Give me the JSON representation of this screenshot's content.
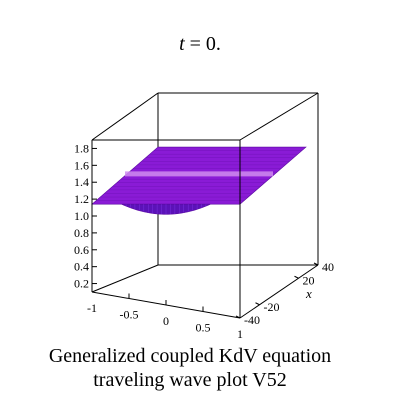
{
  "chart_data": {
    "type": "surface3d",
    "title_var": "t",
    "title_eq": " = 0.",
    "caption": [
      "Generalized coupled KdV equation",
      "traveling wave plot V52"
    ],
    "axes": {
      "x": {
        "label": "x",
        "range": [
          -40,
          40
        ],
        "ticks": [
          "-40",
          "-20",
          "20",
          "40"
        ]
      },
      "y": {
        "label": "",
        "range": [
          -1,
          1
        ],
        "ticks": [
          "-1",
          "-0.5",
          "0",
          "0.5",
          "1"
        ]
      },
      "z": {
        "label": "",
        "range": [
          0.1,
          1.9
        ],
        "ticks": [
          "0.2",
          "0.4",
          "0.6",
          "0.8",
          "1.0",
          "1.2",
          "1.4",
          "1.6",
          "1.8"
        ]
      }
    },
    "surface": {
      "description_values": {
        "plateau": 1.2,
        "dip_min": 1.02,
        "dip_center_y": 0.0,
        "dip_halfwidth_y": 0.6
      },
      "color": "#8a1bd6",
      "edge_color": "#5a0aa0",
      "ridge_color": "#d08cf0"
    },
    "grid": false,
    "box": true
  }
}
